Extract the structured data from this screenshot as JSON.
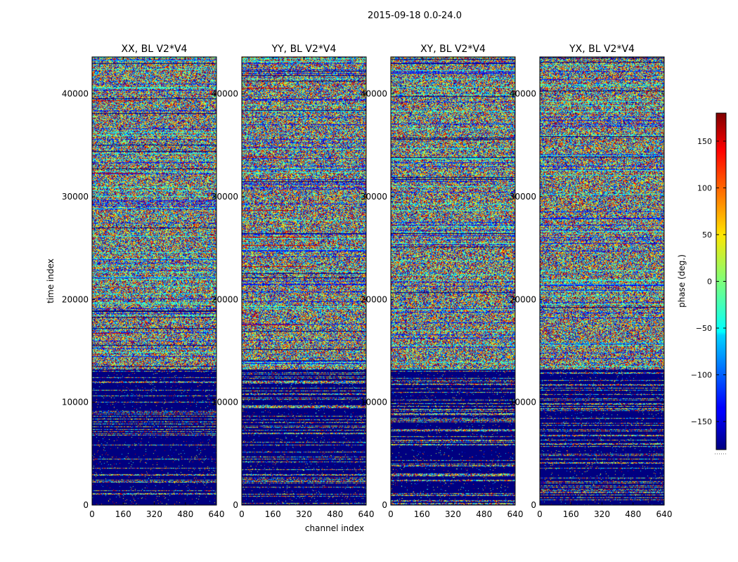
{
  "suptitle": "2015-09-18 0.0-24.0",
  "chart_data": {
    "type": "heatmap",
    "title": "2015-09-18 0.0-24.0",
    "xlabel": "channel index",
    "ylabel": "time index",
    "xlim": [
      0,
      640
    ],
    "ylim": [
      0,
      43600
    ],
    "xticks": [
      "0",
      "160",
      "320",
      "480",
      "640"
    ],
    "yticks": [
      "0",
      "10000",
      "20000",
      "30000",
      "40000"
    ],
    "xtick_values": [
      0,
      160,
      320,
      480,
      640
    ],
    "ytick_values": [
      0,
      10000,
      20000,
      30000,
      40000
    ],
    "panels": [
      {
        "title": "XX, BL V2*V4"
      },
      {
        "title": "YY, BL V2*V4"
      },
      {
        "title": "XY, BL V2*V4"
      },
      {
        "title": "YX, BL V2*V4"
      }
    ],
    "colorbar": {
      "label": "phase (deg.)",
      "range": [
        -180,
        180
      ],
      "tick_values": [
        150,
        100,
        50,
        0,
        -50,
        -100,
        -150
      ],
      "ticks": [
        "150",
        "100",
        "50",
        "0",
        "−50",
        "−100",
        "−150"
      ],
      "colormap": "jet"
    },
    "time_segments": [
      {
        "range": [
          0,
          13200
        ],
        "description": "mostly phase near -180 (dark blue) with sparse noisy rows"
      },
      {
        "range": [
          13200,
          43600
        ],
        "description": "random phase noise across all channels with occasional horizontal stripes"
      }
    ]
  }
}
